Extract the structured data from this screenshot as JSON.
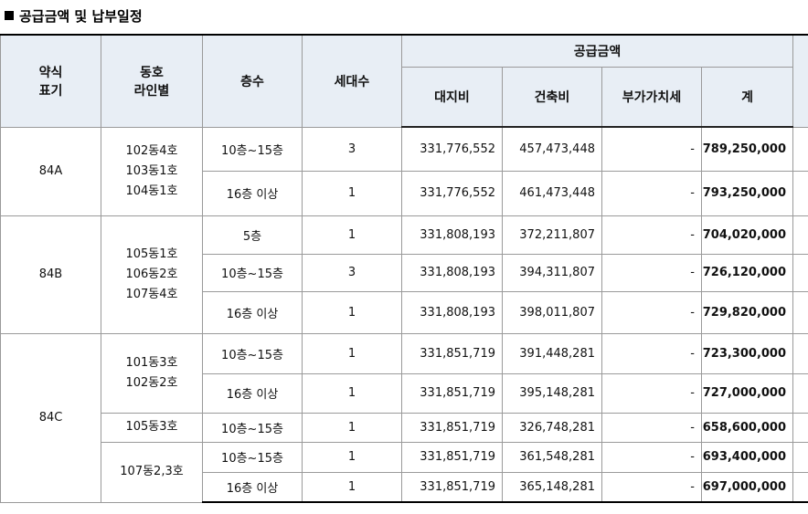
{
  "title": "공급금액 및 납부일정",
  "headers": {
    "type": [
      "약식",
      "표기"
    ],
    "dong": [
      "동호",
      "라인별"
    ],
    "floor": "층수",
    "households": "세대수",
    "supply_group": "공급금액",
    "land": "대지비",
    "building": "건축비",
    "vat": "부가가치세",
    "total": "계"
  },
  "types": [
    {
      "label": "84A"
    },
    {
      "label": "84B"
    },
    {
      "label": "84C"
    }
  ],
  "dong_groups": [
    {
      "lines": [
        "102동4호",
        "103동1호",
        "104동1호"
      ]
    },
    {
      "lines": [
        "105동1호",
        "106동2호",
        "107동4호"
      ]
    },
    {
      "lines": [
        "101동3호",
        "102동2호"
      ]
    },
    {
      "lines": [
        "105동3호"
      ]
    },
    {
      "lines": [
        "107동2,3호"
      ]
    }
  ],
  "rows": [
    {
      "floor": "10층~15층",
      "households": "3",
      "land": "331,776,552",
      "building": "457,473,448",
      "vat": "-",
      "total": "789,250,000"
    },
    {
      "floor": "16층 이상",
      "households": "1",
      "land": "331,776,552",
      "building": "461,473,448",
      "vat": "-",
      "total": "793,250,000"
    },
    {
      "floor": "5층",
      "households": "1",
      "land": "331,808,193",
      "building": "372,211,807",
      "vat": "-",
      "total": "704,020,000"
    },
    {
      "floor": "10층~15층",
      "households": "3",
      "land": "331,808,193",
      "building": "394,311,807",
      "vat": "-",
      "total": "726,120,000"
    },
    {
      "floor": "16층 이상",
      "households": "1",
      "land": "331,808,193",
      "building": "398,011,807",
      "vat": "-",
      "total": "729,820,000"
    },
    {
      "floor": "10층~15층",
      "households": "1",
      "land": "331,851,719",
      "building": "391,448,281",
      "vat": "-",
      "total": "723,300,000"
    },
    {
      "floor": "16층 이상",
      "households": "1",
      "land": "331,851,719",
      "building": "395,148,281",
      "vat": "-",
      "total": "727,000,000"
    },
    {
      "floor": "10층~15층",
      "households": "1",
      "land": "331,851,719",
      "building": "326,748,281",
      "vat": "-",
      "total": "658,600,000"
    },
    {
      "floor": "10층~15층",
      "households": "1",
      "land": "331,851,719",
      "building": "361,548,281",
      "vat": "-",
      "total": "693,400,000"
    },
    {
      "floor": "16층 이상",
      "households": "1",
      "land": "331,851,719",
      "building": "365,148,281",
      "vat": "-",
      "total": "697,000,000"
    }
  ],
  "colors": {
    "header_bg": "#e8eef5",
    "border": "#9a9a9a"
  }
}
